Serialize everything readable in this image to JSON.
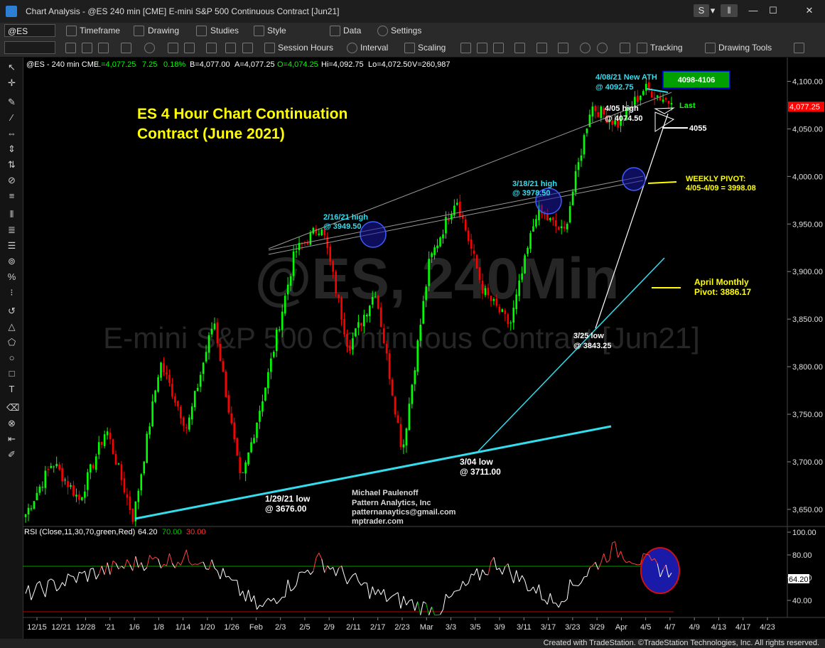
{
  "window": {
    "title": "Chart Analysis - @ES 240 min [CME] E-mini S&P 500 Continuous Contract [Jun21]",
    "buttons": [
      "S",
      "▾",
      "‖",
      "—",
      "☐",
      "✕"
    ]
  },
  "toolbar1": {
    "symbol": "@ES",
    "items": [
      "Timeframe",
      "Drawing",
      "Studies",
      "Style",
      "Data",
      "Settings"
    ]
  },
  "toolbar2": {
    "items": [
      "Session Hours",
      "Interval",
      "Scaling",
      "Tracking",
      "Drawing Tools"
    ]
  },
  "left_tools": [
    "arrow-icon",
    "crosshair-icon",
    "pen-icon",
    "trendline-icon",
    "ray-icon",
    "hline-icon",
    "vline-icon",
    "channel-icon",
    "fib-icon",
    "gann-icon",
    "text-icon",
    "ellipse-icon",
    "rectangle-icon",
    "triangle-icon",
    "arc-icon",
    "cycle-icon",
    "eraser-icon"
  ],
  "status": {
    "text": "Created with TradeStation. ©TradeStation Technologies, Inc. All rights reserved."
  },
  "chart_header": {
    "symbol_line": "@ES - 240 min CME",
    "last": "L=4,077.25",
    "change": "7.25",
    "pct": "0.18%",
    "bid": "B=4,077.00",
    "ask": "A=4,077.25",
    "open": "O=4,074.25",
    "high": "Hi=4,092.75",
    "low": "Lo=4,072.50",
    "volume": "V=260,987"
  },
  "watermark": {
    "line1": "@ES, 240Min",
    "line2": "E-mini S&P 500 Continuous Contract [Jun21]"
  },
  "annotations": {
    "title_line1": "ES 4 Hour Chart Continuation",
    "title_line2": "Contract (June 2021)",
    "feb16_a": "2/16/21 high",
    "feb16_b": "@ 3949.50",
    "mar18_a": "3/18/21 high",
    "mar18_b": "@ 3978.50",
    "ath_a": "4/08/21 New ATH",
    "ath_b": "@ 4092.75",
    "target_box": "4098-4106",
    "apr05_a": "4/05 high",
    "apr05_b": "@ 4074.50",
    "last_label": "Last",
    "level_4055": "4055",
    "weekly_a": "WEEKLY PIVOT:",
    "weekly_b": "4/05-4/09 = 3998.08",
    "monthly_a": "April Monthly",
    "monthly_b": "Pivot: 3886.17",
    "mar25_a": "3/25 low",
    "mar25_b": "@ 3843.25",
    "mar04_a": "3/04 low",
    "mar04_b": "@ 3711.00",
    "jan29_a": "1/29/21 low",
    "jan29_b": "@ 3676.00",
    "author1": "Michael Paulenoff",
    "author2": "Pattern Analytics, Inc",
    "author3": "patternanaytics@gmail.com",
    "author4": "mptrader.com"
  },
  "rsi_header": {
    "label": "RSI (Close,11,30,70,green,Red)",
    "value": "64.20",
    "ob": "70.00",
    "os": "30.00"
  },
  "colors": {
    "up": "#00ff00",
    "down": "#ff0000",
    "cyan": "#33ddee",
    "yellow": "#ffff00",
    "blue_circle": "#1a1aa8"
  },
  "chart_data": [
    {
      "type": "candlestick",
      "title": "ES 4 Hour Chart Continuation Contract (June 2021)",
      "y_axis": {
        "ticks": [
          3650,
          3700,
          3750,
          3800,
          3850,
          3900,
          3950,
          4000,
          4050,
          4100
        ],
        "tick_labels": [
          "3,650.00",
          "3,700.00",
          "3,750.00",
          "3,800.00",
          "3,850.00",
          "3,900.00",
          "3,950.00",
          "4,000.00",
          "4,050.00",
          "4,100.00"
        ],
        "ylim": [
          3632,
          4125
        ]
      },
      "x_axis": {
        "tick_labels": [
          "12/15",
          "12/21",
          "12/28",
          "'21",
          "1/6",
          "1/8",
          "1/14",
          "1/20",
          "1/26",
          "Feb",
          "2/3",
          "2/5",
          "2/9",
          "2/11",
          "2/17",
          "2/23",
          "Mar",
          "3/3",
          "3/5",
          "3/9",
          "3/11",
          "3/17",
          "3/23",
          "3/29",
          "Apr",
          "4/5",
          "4/7",
          "4/9",
          "4/13",
          "4/17",
          "4/23"
        ]
      },
      "last_price": "4,077.25",
      "key_points": [
        {
          "date": "12/15",
          "price": 3645
        },
        {
          "date": "12/18",
          "price": 3700
        },
        {
          "date": "12/22",
          "price": 3660
        },
        {
          "date": "12/28",
          "price": 3735
        },
        {
          "date": "'21",
          "price": 3640
        },
        {
          "date": "1/8",
          "price": 3805
        },
        {
          "date": "1/14",
          "price": 3735
        },
        {
          "date": "1/20",
          "price": 3850
        },
        {
          "date": "1/29",
          "price": 3676.0
        },
        {
          "date": "2/3",
          "price": 3790
        },
        {
          "date": "2/11",
          "price": 3920
        },
        {
          "date": "2/16",
          "price": 3949.5
        },
        {
          "date": "2/23",
          "price": 3820
        },
        {
          "date": "2/25",
          "price": 3880
        },
        {
          "date": "3/4",
          "price": 3711.0
        },
        {
          "date": "3/11",
          "price": 3910
        },
        {
          "date": "3/18",
          "price": 3978.5
        },
        {
          "date": "3/22",
          "price": 3880
        },
        {
          "date": "3/25",
          "price": 3843.25
        },
        {
          "date": "3/29",
          "price": 3965
        },
        {
          "date": "3/31",
          "price": 3940
        },
        {
          "date": "4/5",
          "price": 4074.5
        },
        {
          "date": "4/7",
          "price": 4055
        },
        {
          "date": "4/8",
          "price": 4092.75
        },
        {
          "date": "4/8 last",
          "price": 4077.25
        }
      ],
      "levels": [
        {
          "label": "4098-4106",
          "low": 4098,
          "high": 4106
        },
        {
          "label": "4055",
          "value": 4055
        },
        {
          "label": "WEEKLY PIVOT",
          "value": 3998.08
        },
        {
          "label": "April Monthly Pivot",
          "value": 3886.17
        }
      ]
    },
    {
      "type": "line",
      "title": "RSI (Close,11,30,70,green,Red)",
      "y_axis": {
        "ticks": [
          40,
          60,
          80,
          100
        ],
        "tick_labels": [
          "40.00",
          "60.00",
          "80.00",
          "100.00"
        ],
        "ylim": [
          25,
          105
        ]
      },
      "overbought": 70,
      "oversold": 30,
      "last_value": 64.2,
      "key_points": [
        {
          "date": "12/15",
          "value": 45
        },
        {
          "date": "12/28",
          "value": 62
        },
        {
          "date": "1/8",
          "value": 74
        },
        {
          "date": "1/20",
          "value": 78
        },
        {
          "date": "1/29",
          "value": 32
        },
        {
          "date": "2/11",
          "value": 75
        },
        {
          "date": "2/23",
          "value": 45
        },
        {
          "date": "3/4",
          "value": 31
        },
        {
          "date": "3/17",
          "value": 74
        },
        {
          "date": "3/25",
          "value": 38
        },
        {
          "date": "4/5",
          "value": 85
        },
        {
          "date": "4/8",
          "value": 64.2
        }
      ]
    }
  ]
}
